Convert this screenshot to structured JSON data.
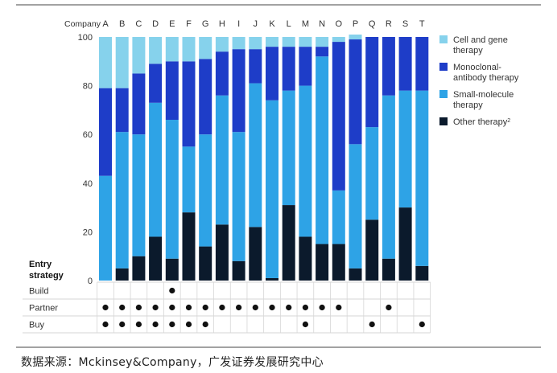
{
  "chart_data": {
    "type": "bar",
    "stacked": true,
    "percent": true,
    "company_label": "Company",
    "categories": [
      "A",
      "B",
      "C",
      "D",
      "E",
      "F",
      "G",
      "H",
      "I",
      "J",
      "K",
      "L",
      "M",
      "N",
      "O",
      "P",
      "Q",
      "R",
      "S",
      "T"
    ],
    "ylim": [
      0,
      100
    ],
    "yticks": [
      0,
      20,
      40,
      60,
      80,
      100
    ],
    "grid": false,
    "legend_position": "right",
    "series": [
      {
        "name": "Other therapy",
        "superscript": "2",
        "color": "#0b1a2c",
        "values": [
          0,
          5,
          10,
          18,
          9,
          28,
          14,
          23,
          8,
          22,
          1,
          31,
          18,
          15,
          15,
          5,
          25,
          9,
          30,
          6
        ]
      },
      {
        "name": "Small-molecule therapy",
        "color": "#2ea3e6",
        "values": [
          43,
          56,
          50,
          55,
          57,
          27,
          46,
          53,
          53,
          59,
          73,
          47,
          62,
          77,
          22,
          51,
          38,
          67,
          48,
          72
        ]
      },
      {
        "name": "Monoclonal-antibody therapy",
        "color": "#1e3dc8",
        "values": [
          36,
          18,
          25,
          16,
          24,
          35,
          31,
          18,
          34,
          14,
          22,
          18,
          16,
          4,
          61,
          43,
          37,
          24,
          22,
          22
        ]
      },
      {
        "name": "Cell and gene therapy",
        "color": "#86d2ec",
        "values": [
          21,
          21,
          15,
          11,
          10,
          10,
          9,
          6,
          5,
          5,
          4,
          4,
          4,
          4,
          2,
          2,
          0,
          0,
          0,
          0
        ]
      }
    ],
    "legend": [
      {
        "line1": "Cell and gene",
        "line2": "therapy",
        "sup": "",
        "color": "#86d2ec"
      },
      {
        "line1": "Monoclonal-",
        "line2": "antibody therapy",
        "sup": "",
        "color": "#1e3dc8"
      },
      {
        "line1": "Small-molecule",
        "line2": "therapy",
        "sup": "",
        "color": "#2ea3e6"
      },
      {
        "line1": "Other therapy",
        "line2": "",
        "sup": "2",
        "color": "#0b1a2c"
      }
    ],
    "entry_strategy": {
      "title_line1": "Entry",
      "title_line2": "strategy",
      "rows": [
        {
          "label": "Build",
          "marks": [
            "E"
          ]
        },
        {
          "label": "Partner",
          "marks": [
            "A",
            "B",
            "C",
            "D",
            "E",
            "F",
            "G",
            "H",
            "I",
            "J",
            "K",
            "L",
            "M",
            "N",
            "O",
            "R"
          ]
        },
        {
          "label": "Buy",
          "marks": [
            "A",
            "B",
            "C",
            "D",
            "E",
            "F",
            "G",
            "M",
            "Q",
            "T"
          ]
        }
      ]
    }
  },
  "source": "数据来源：Mckinsey&Company，广发证券发展研究中心"
}
